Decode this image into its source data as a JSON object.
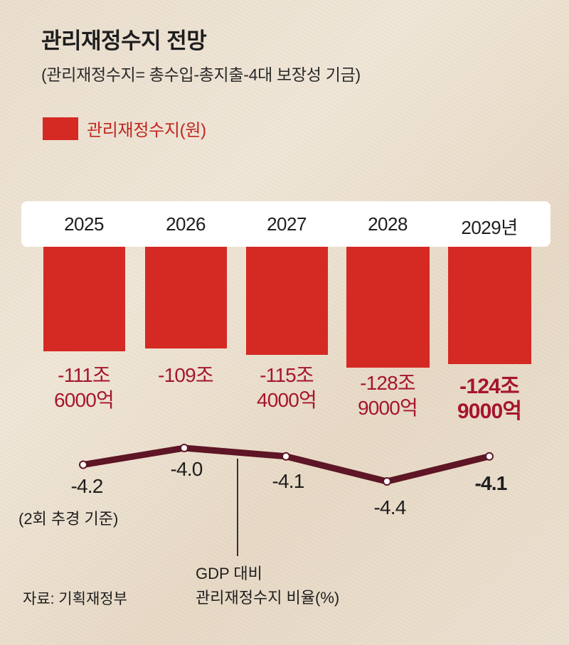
{
  "header": {
    "title": "관리재정수지 전망",
    "subtitle": "(관리재정수지= 총수입-총지출-4대 보장성 기금)"
  },
  "legend": {
    "label": "관리재정수지(원)",
    "color": "#d42a23"
  },
  "chart_data": [
    {
      "type": "bar",
      "categories": [
        "2025",
        "2026",
        "2027",
        "2028",
        "2029년"
      ],
      "series": [
        {
          "name": "관리재정수지(원)",
          "values": [
            -111.6,
            -109,
            -115.4,
            -128.9,
            -124.9
          ],
          "unit": "조 원"
        }
      ],
      "value_labels": [
        [
          "-111조",
          "6000억"
        ],
        [
          "-109조"
        ],
        [
          "-115조",
          "4000억"
        ],
        [
          "-128조",
          "9000억"
        ],
        [
          "-124조",
          "9000억"
        ]
      ],
      "bar_color": "#d42a23",
      "label_color": "#a5162a"
    },
    {
      "type": "line",
      "x": [
        "2025",
        "2026",
        "2027",
        "2028",
        "2029년"
      ],
      "series": [
        {
          "name": "GDP 대비 관리재정수지 비율(%)",
          "values": [
            -4.2,
            -4.0,
            -4.1,
            -4.4,
            -4.1
          ]
        }
      ],
      "value_labels": [
        "-4.2",
        "-4.0",
        "-4.1",
        "-4.4",
        "-4.1"
      ],
      "note_2025": "(2회 추경 기준)",
      "axis_note": [
        "GDP 대비",
        "관리재정수지 비율(%)"
      ],
      "line_color": "#5e1525"
    }
  ],
  "source": "자료: 기획재정부"
}
